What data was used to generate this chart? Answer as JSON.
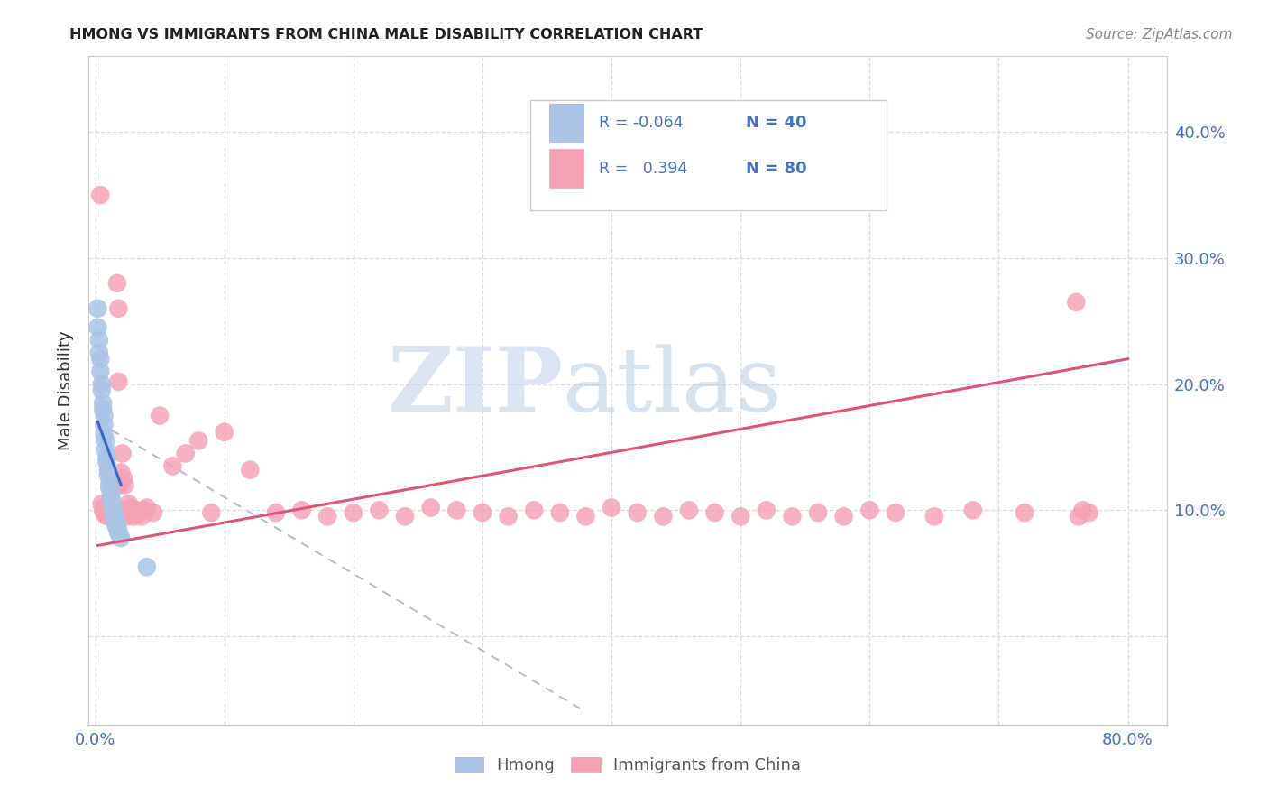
{
  "title": "HMONG VS IMMIGRANTS FROM CHINA MALE DISABILITY CORRELATION CHART",
  "source": "Source: ZipAtlas.com",
  "ylabel": "Male Disability",
  "color_hmong": "#aac4e8",
  "color_china": "#f5a0b5",
  "color_hmong_line": "#3a6abf",
  "color_china_line": "#e05575",
  "color_dash": "#b0bcd4",
  "watermark_zip": "ZIP",
  "watermark_atlas": "atlas",
  "background_color": "#ffffff",
  "grid_color": "#d0d0e0",
  "legend_label1": "Hmong",
  "legend_label2": "Immigrants from China",
  "hmong_scatter": {
    "x": [
      0.002,
      0.002,
      0.003,
      0.003,
      0.004,
      0.004,
      0.005,
      0.005,
      0.006,
      0.006,
      0.007,
      0.007,
      0.007,
      0.008,
      0.008,
      0.009,
      0.009,
      0.01,
      0.01,
      0.011,
      0.011,
      0.012,
      0.012,
      0.013,
      0.013,
      0.014,
      0.014,
      0.014,
      0.015,
      0.015,
      0.016,
      0.016,
      0.016,
      0.017,
      0.017,
      0.018,
      0.018,
      0.019,
      0.02,
      0.04
    ],
    "y": [
      0.26,
      0.245,
      0.235,
      0.225,
      0.22,
      0.21,
      0.2,
      0.195,
      0.185,
      0.18,
      0.175,
      0.168,
      0.16,
      0.155,
      0.148,
      0.142,
      0.138,
      0.132,
      0.128,
      0.122,
      0.118,
      0.114,
      0.11,
      0.108,
      0.105,
      0.102,
      0.1,
      0.098,
      0.095,
      0.093,
      0.092,
      0.09,
      0.088,
      0.087,
      0.085,
      0.084,
      0.082,
      0.08,
      0.078,
      0.055
    ]
  },
  "china_scatter": {
    "x": [
      0.004,
      0.005,
      0.006,
      0.007,
      0.007,
      0.008,
      0.009,
      0.01,
      0.01,
      0.011,
      0.012,
      0.012,
      0.013,
      0.013,
      0.014,
      0.014,
      0.015,
      0.015,
      0.016,
      0.017,
      0.017,
      0.018,
      0.018,
      0.019,
      0.02,
      0.02,
      0.021,
      0.022,
      0.023,
      0.024,
      0.025,
      0.026,
      0.027,
      0.028,
      0.03,
      0.032,
      0.034,
      0.036,
      0.038,
      0.04,
      0.045,
      0.05,
      0.06,
      0.07,
      0.08,
      0.09,
      0.1,
      0.12,
      0.14,
      0.16,
      0.18,
      0.2,
      0.22,
      0.24,
      0.26,
      0.28,
      0.3,
      0.32,
      0.34,
      0.36,
      0.38,
      0.4,
      0.42,
      0.44,
      0.46,
      0.48,
      0.5,
      0.52,
      0.54,
      0.56,
      0.58,
      0.6,
      0.62,
      0.65,
      0.68,
      0.72,
      0.76,
      0.762,
      0.765,
      0.77
    ],
    "y": [
      0.35,
      0.105,
      0.1,
      0.098,
      0.102,
      0.096,
      0.098,
      0.102,
      0.095,
      0.1,
      0.098,
      0.102,
      0.105,
      0.095,
      0.1,
      0.098,
      0.102,
      0.095,
      0.1,
      0.098,
      0.28,
      0.202,
      0.26,
      0.12,
      0.1,
      0.13,
      0.145,
      0.125,
      0.12,
      0.1,
      0.095,
      0.105,
      0.102,
      0.098,
      0.095,
      0.1,
      0.098,
      0.095,
      0.1,
      0.102,
      0.098,
      0.175,
      0.135,
      0.145,
      0.155,
      0.098,
      0.162,
      0.132,
      0.098,
      0.1,
      0.095,
      0.098,
      0.1,
      0.095,
      0.102,
      0.1,
      0.098,
      0.095,
      0.1,
      0.098,
      0.095,
      0.102,
      0.098,
      0.095,
      0.1,
      0.098,
      0.095,
      0.1,
      0.095,
      0.098,
      0.095,
      0.1,
      0.098,
      0.095,
      0.1,
      0.098,
      0.265,
      0.095,
      0.1,
      0.098
    ]
  },
  "hmong_line": {
    "x": [
      0.002,
      0.02
    ],
    "y": [
      0.17,
      0.12
    ]
  },
  "hmong_dash": {
    "x": [
      0.002,
      0.38
    ],
    "y": [
      0.17,
      -0.06
    ]
  },
  "china_line": {
    "x": [
      0.002,
      0.8
    ],
    "y": [
      0.072,
      0.22
    ]
  },
  "xlim": [
    -0.005,
    0.83
  ],
  "ylim": [
    -0.07,
    0.46
  ],
  "xticks": [
    0.0,
    0.1,
    0.2,
    0.3,
    0.4,
    0.5,
    0.6,
    0.7,
    0.8
  ],
  "yticks_right": [
    0.1,
    0.2,
    0.3,
    0.4
  ],
  "ytick_labels_right": [
    "10.0%",
    "20.0%",
    "30.0%",
    "40.0%"
  ],
  "x_show_labels": [
    "0.0%",
    "",
    "",
    "",
    "",
    "",
    "",
    "",
    "80.0%"
  ]
}
